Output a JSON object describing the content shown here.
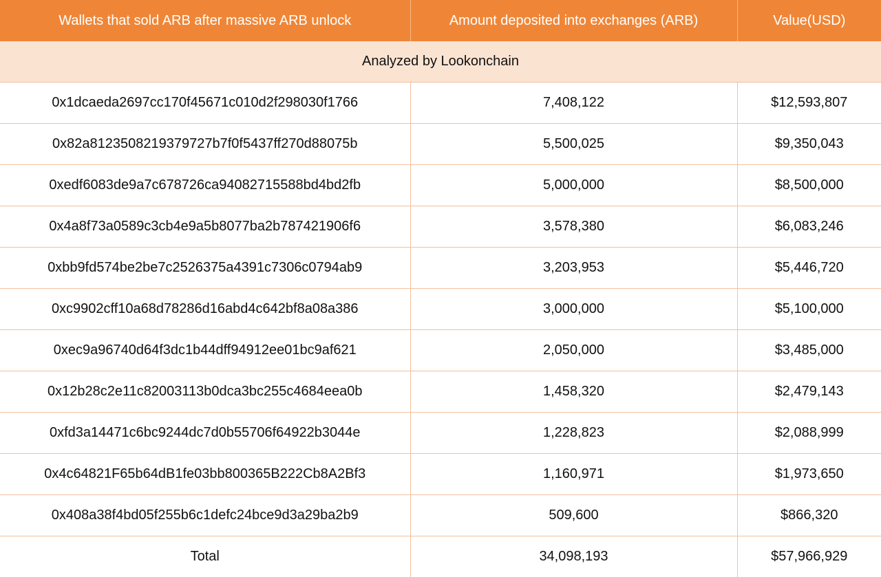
{
  "table": {
    "headers": [
      "Wallets that sold ARB after massive ARB unlock",
      "Amount deposited into exchanges (ARB)",
      "Value(USD)"
    ],
    "banner": "Analyzed by Lookonchain",
    "rows": [
      [
        "0x1dcaeda2697cc170f45671c010d2f298030f1766",
        "7,408,122",
        "$12,593,807"
      ],
      [
        "0x82a8123508219379727b7f0f5437ff270d88075b",
        "5,500,025",
        "$9,350,043"
      ],
      [
        "0xedf6083de9a7c678726ca94082715588bd4bd2fb",
        "5,000,000",
        "$8,500,000"
      ],
      [
        "0x4a8f73a0589c3cb4e9a5b8077ba2b787421906f6",
        "3,578,380",
        "$6,083,246"
      ],
      [
        "0xbb9fd574be2be7c2526375a4391c7306c0794ab9",
        "3,203,953",
        "$5,446,720"
      ],
      [
        "0xc9902cff10a68d78286d16abd4c642bf8a08a386",
        "3,000,000",
        "$5,100,000"
      ],
      [
        "0xec9a96740d64f3dc1b44dff94912ee01bc9af621",
        "2,050,000",
        "$3,485,000"
      ],
      [
        "0x12b28c2e11c82003113b0dca3bc255c4684eea0b",
        "1,458,320",
        "$2,479,143"
      ],
      [
        "0xfd3a14471c6bc9244dc7d0b55706f64922b3044e",
        "1,228,823",
        "$2,088,999"
      ],
      [
        "0x4c64821F65b64dB1fe03bb800365B222Cb8A2Bf3",
        "1,160,971",
        "$1,973,650"
      ],
      [
        "0x408a38f4bd05f255b6c1defc24bce9d3a29ba2b9",
        "509,600",
        "$866,320"
      ]
    ],
    "total": [
      "Total",
      "34,098,193",
      "$57,966,929"
    ]
  },
  "colors": {
    "header_bg": "#ef8637",
    "banner_bg": "#fbe3d2",
    "grid_line": "#f3c09a"
  }
}
